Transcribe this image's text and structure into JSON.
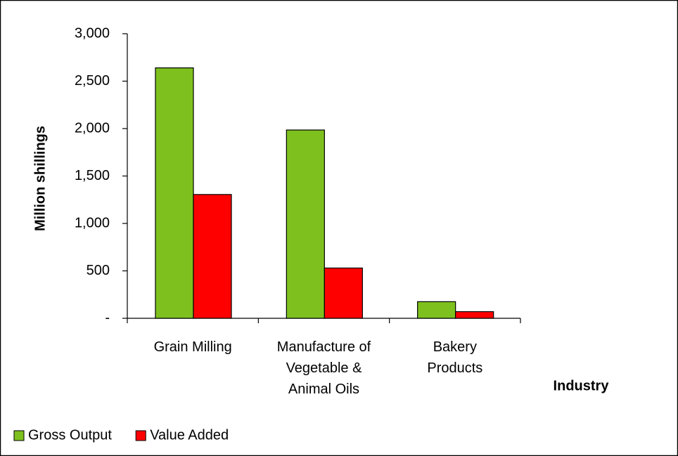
{
  "chart_data": {
    "type": "bar",
    "title": "",
    "xlabel": "Industry",
    "ylabel": "Million shillings",
    "ylim": [
      0,
      3000
    ],
    "yticks": [
      0,
      500,
      1000,
      1500,
      2000,
      2500,
      3000
    ],
    "ytick_labels": [
      "-",
      "500",
      "1,000",
      "1,500",
      "2,000",
      "2,500",
      "3,000"
    ],
    "categories": [
      [
        "Grain Milling"
      ],
      [
        "Manufacture of",
        "Vegetable &",
        "Animal Oils"
      ],
      [
        "Bakery",
        "Products"
      ]
    ],
    "series": [
      {
        "name": "Gross Output",
        "color": "#7ec11e",
        "values": [
          2640,
          1985,
          175
        ]
      },
      {
        "name": "Value Added",
        "color": "#ff0000",
        "values": [
          1305,
          530,
          70
        ]
      }
    ],
    "grid": false,
    "legend": "bottom-left"
  }
}
